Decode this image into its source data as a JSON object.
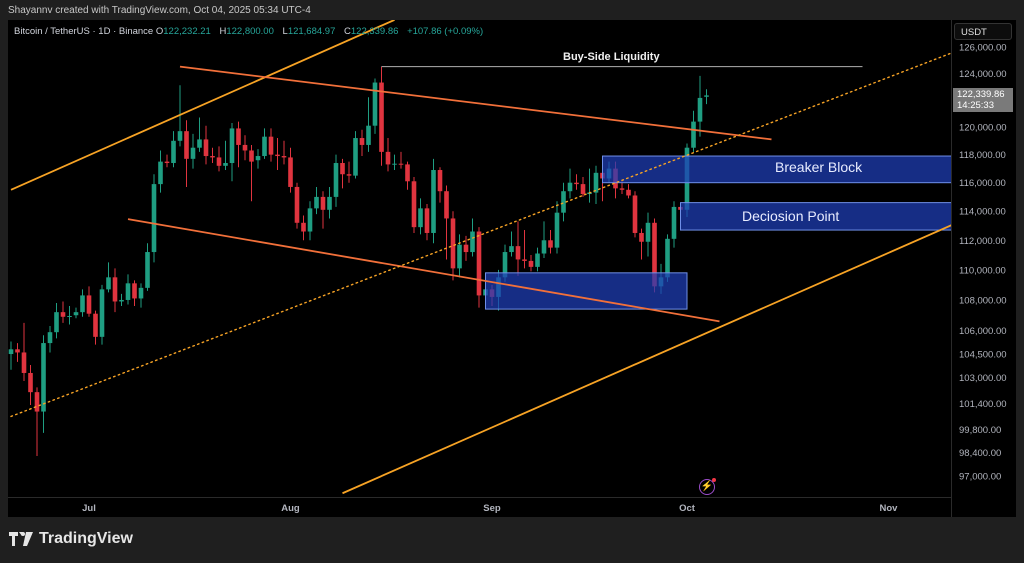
{
  "header": {
    "credit": "Shayannv created with TradingView.com, Oct 04, 2025 05:34 UTC-4"
  },
  "legend": {
    "symbol": "Bitcoin / TetherUS · 1D · Binance",
    "open_label": "O",
    "open": "122,232.21",
    "high_label": "H",
    "high": "122,800.00",
    "low_label": "L",
    "low": "121,684.97",
    "close_label": "C",
    "close": "122,339.86",
    "change": "+107.86 (+0.09%)"
  },
  "price_axis": {
    "currency": "USDT",
    "last_price": "122,339.86",
    "countdown": "14:25:33"
  },
  "footer": {
    "brand": "TradingView"
  },
  "colors": {
    "up": "#1f9e82",
    "down": "#e0343f",
    "channel": "#f7a325",
    "trendline": "#f2703a",
    "zone_fill": "#1f3fb8",
    "zone_border": "#6f8fe8",
    "liquidity_line": "#b0b0b0",
    "background": "#000000"
  },
  "icons": {
    "alert": "lightning-icon",
    "logo": "tradingview-logo-icon"
  },
  "chart_data": {
    "type": "candlestick",
    "interval": "1D",
    "y_scale": "log",
    "ylim": [
      96000,
      128000
    ],
    "xlim": [
      "2025-06-19",
      "2025-11-11"
    ],
    "grid": false,
    "y_ticks": [
      "126,000.00",
      "124,000.00",
      "120,000.00",
      "118,000.00",
      "116,000.00",
      "114,000.00",
      "112,000.00",
      "110,000.00",
      "108,000.00",
      "106,000.00",
      "104,500.00",
      "103,000.00",
      "101,400.00",
      "99,800.00",
      "98,400.00",
      "97,000.00"
    ],
    "x_ticks": [
      {
        "label": "Jul",
        "date": "2025-07-01"
      },
      {
        "label": "Aug",
        "date": "2025-08-01"
      },
      {
        "label": "Sep",
        "date": "2025-09-01"
      },
      {
        "label": "Oct",
        "date": "2025-10-01"
      },
      {
        "label": "Nov",
        "date": "2025-11-01"
      }
    ],
    "candles_columns": [
      "date",
      "open",
      "high",
      "low",
      "close"
    ],
    "candles": [
      [
        "2025-06-19",
        104500,
        105300,
        103500,
        104800
      ],
      [
        "2025-06-20",
        104800,
        105200,
        104000,
        104600
      ],
      [
        "2025-06-21",
        104600,
        106500,
        102800,
        103300
      ],
      [
        "2025-06-22",
        103300,
        103800,
        101300,
        102100
      ],
      [
        "2025-06-23",
        102100,
        102400,
        98200,
        100900
      ],
      [
        "2025-06-24",
        100900,
        105700,
        99600,
        105200
      ],
      [
        "2025-06-25",
        105200,
        106300,
        104600,
        105900
      ],
      [
        "2025-06-26",
        105900,
        107800,
        105500,
        107200
      ],
      [
        "2025-06-27",
        107200,
        107900,
        106500,
        106900
      ],
      [
        "2025-06-28",
        106900,
        107600,
        106400,
        106950
      ],
      [
        "2025-06-29",
        107000,
        107500,
        106800,
        107200
      ],
      [
        "2025-06-30",
        107200,
        108700,
        106900,
        108300
      ],
      [
        "2025-07-01",
        108300,
        108900,
        106900,
        107100
      ],
      [
        "2025-07-02",
        107100,
        107300,
        105100,
        105600
      ],
      [
        "2025-07-03",
        105600,
        109000,
        105100,
        108700
      ],
      [
        "2025-07-04",
        108700,
        110500,
        108500,
        109500
      ],
      [
        "2025-07-05",
        109500,
        110100,
        107200,
        107900
      ],
      [
        "2025-07-06",
        107900,
        108400,
        107600,
        108000
      ],
      [
        "2025-07-07",
        108000,
        109700,
        107700,
        109100
      ],
      [
        "2025-07-08",
        109100,
        109300,
        107600,
        108100
      ],
      [
        "2025-07-09",
        108100,
        109100,
        107500,
        108800
      ],
      [
        "2025-07-10",
        108800,
        111800,
        108600,
        111200
      ],
      [
        "2025-07-11",
        111200,
        116600,
        110500,
        115900
      ],
      [
        "2025-07-12",
        115900,
        118300,
        115300,
        117500
      ],
      [
        "2025-07-13",
        117500,
        118000,
        117100,
        117400
      ],
      [
        "2025-07-14",
        117400,
        119700,
        117100,
        119000
      ],
      [
        "2025-07-15",
        119000,
        123100,
        118600,
        119700
      ],
      [
        "2025-07-16",
        119700,
        120500,
        115700,
        117700
      ],
      [
        "2025-07-17",
        117700,
        119500,
        117000,
        118500
      ],
      [
        "2025-07-18",
        118500,
        120700,
        118200,
        119100
      ],
      [
        "2025-07-19",
        119100,
        120100,
        117300,
        117900
      ],
      [
        "2025-07-20",
        117900,
        118500,
        117400,
        117800
      ],
      [
        "2025-07-21",
        117800,
        118600,
        116800,
        117200
      ],
      [
        "2025-07-22",
        117200,
        119000,
        116900,
        117400
      ],
      [
        "2025-07-23",
        117400,
        120300,
        116100,
        119900
      ],
      [
        "2025-07-24",
        119900,
        120400,
        117100,
        118700
      ],
      [
        "2025-07-25",
        118700,
        119400,
        117600,
        118300
      ],
      [
        "2025-07-26",
        118300,
        118700,
        114700,
        117500
      ],
      [
        "2025-07-27",
        117600,
        118400,
        117000,
        117900
      ],
      [
        "2025-07-28",
        117900,
        119900,
        117700,
        119300
      ],
      [
        "2025-07-29",
        119300,
        119900,
        117500,
        118000
      ],
      [
        "2025-07-30",
        118000,
        119200,
        116900,
        117900
      ],
      [
        "2025-07-31",
        117900,
        119000,
        117300,
        117800
      ],
      [
        "2025-08-01",
        117800,
        118500,
        115300,
        115700
      ],
      [
        "2025-08-02",
        115700,
        116000,
        112800,
        113200
      ],
      [
        "2025-08-03",
        113200,
        113700,
        112000,
        112600
      ],
      [
        "2025-08-04",
        112600,
        114700,
        112000,
        114200
      ],
      [
        "2025-08-05",
        114200,
        115700,
        113800,
        115000
      ],
      [
        "2025-08-06",
        115000,
        115400,
        112800,
        114100
      ],
      [
        "2025-08-07",
        114100,
        115700,
        113500,
        115000
      ],
      [
        "2025-08-08",
        115000,
        118000,
        114300,
        117400
      ],
      [
        "2025-08-09",
        117400,
        117700,
        115600,
        116600
      ],
      [
        "2025-08-10",
        116600,
        117500,
        116000,
        116500
      ],
      [
        "2025-08-11",
        116500,
        119700,
        116300,
        119200
      ],
      [
        "2025-08-12",
        119200,
        119800,
        117900,
        118700
      ],
      [
        "2025-08-13",
        118700,
        122200,
        118200,
        120100
      ],
      [
        "2025-08-14",
        120100,
        123600,
        119500,
        123300
      ],
      [
        "2025-08-15",
        123300,
        124500,
        117200,
        118200
      ],
      [
        "2025-08-16",
        118200,
        119200,
        116800,
        117300
      ],
      [
        "2025-08-17",
        117300,
        118000,
        116900,
        117350
      ],
      [
        "2025-08-18",
        117350,
        118200,
        117000,
        117300
      ],
      [
        "2025-08-19",
        117300,
        117500,
        115500,
        116100
      ],
      [
        "2025-08-20",
        116100,
        116400,
        112500,
        112900
      ],
      [
        "2025-08-21",
        112900,
        114900,
        112400,
        114200
      ],
      [
        "2025-08-22",
        114200,
        114500,
        112000,
        112500
      ],
      [
        "2025-08-23",
        112500,
        117700,
        111800,
        116900
      ],
      [
        "2025-08-24",
        116900,
        117100,
        114600,
        115400
      ],
      [
        "2025-08-25",
        115400,
        115800,
        110700,
        113500
      ],
      [
        "2025-08-26",
        113500,
        114000,
        109300,
        110100
      ],
      [
        "2025-08-27",
        110100,
        112400,
        109500,
        111700
      ],
      [
        "2025-08-28",
        111700,
        112300,
        110600,
        111200
      ],
      [
        "2025-08-29",
        111200,
        113500,
        110900,
        112600
      ],
      [
        "2025-08-30",
        112600,
        112900,
        107500,
        108300
      ],
      [
        "2025-08-31",
        108300,
        109300,
        107600,
        108700
      ],
      [
        "2025-09-01",
        108700,
        109000,
        107600,
        108200
      ],
      [
        "2025-09-02",
        108200,
        110000,
        107300,
        109500
      ],
      [
        "2025-09-03",
        109500,
        111700,
        109200,
        111200
      ],
      [
        "2025-09-04",
        111200,
        112600,
        110900,
        111600
      ],
      [
        "2025-09-05",
        111600,
        113300,
        109600,
        110700
      ],
      [
        "2025-09-06",
        110700,
        112700,
        110100,
        110600
      ],
      [
        "2025-09-07",
        110600,
        111000,
        109900,
        110200
      ],
      [
        "2025-09-08",
        110200,
        111500,
        109900,
        111100
      ],
      [
        "2025-09-09",
        111100,
        113300,
        110800,
        112000
      ],
      [
        "2025-09-10",
        112000,
        112700,
        111100,
        111500
      ],
      [
        "2025-09-11",
        111500,
        114700,
        111100,
        113900
      ],
      [
        "2025-09-12",
        113900,
        116000,
        113300,
        115400
      ],
      [
        "2025-09-13",
        115400,
        117000,
        114900,
        116000
      ],
      [
        "2025-09-14",
        116000,
        116600,
        115500,
        115900
      ],
      [
        "2025-09-15",
        115900,
        116400,
        115000,
        115200
      ],
      [
        "2025-09-16",
        115200,
        117000,
        114600,
        115300
      ],
      [
        "2025-09-17",
        115300,
        117200,
        114500,
        116700
      ],
      [
        "2025-09-18",
        116700,
        117000,
        114700,
        116300
      ],
      [
        "2025-09-19",
        116300,
        117500,
        116000,
        117000
      ],
      [
        "2025-09-20",
        117000,
        117500,
        114900,
        115600
      ],
      [
        "2025-09-21",
        115600,
        116200,
        115200,
        115500
      ],
      [
        "2025-09-22",
        115500,
        115900,
        114900,
        115100
      ],
      [
        "2025-09-23",
        115100,
        115400,
        112200,
        112500
      ],
      [
        "2025-09-24",
        112500,
        112800,
        110700,
        111900
      ],
      [
        "2025-09-25",
        111900,
        113900,
        110900,
        113200
      ],
      [
        "2025-09-26",
        113200,
        113500,
        108500,
        108900
      ],
      [
        "2025-09-27",
        108900,
        110400,
        108400,
        109500
      ],
      [
        "2025-09-28",
        109500,
        112400,
        109200,
        112100
      ],
      [
        "2025-09-29",
        112100,
        114700,
        111500,
        114300
      ],
      [
        "2025-09-30",
        114300,
        114500,
        113900,
        114100
      ],
      [
        "2025-10-01",
        114100,
        118800,
        113600,
        118500
      ],
      [
        "2025-10-02",
        118500,
        121200,
        118200,
        120400
      ],
      [
        "2025-10-03",
        120400,
        123800,
        119300,
        122150
      ],
      [
        "2025-10-04",
        122232.21,
        122800,
        121684.97,
        122339.86
      ]
    ],
    "drawings": {
      "lines": [
        {
          "kind": "channel-upper",
          "style": "solid",
          "color": "#f7a325",
          "from": [
            "2025-06-19",
            115500
          ],
          "to": [
            "2025-08-17",
            128100
          ]
        },
        {
          "kind": "channel-lower",
          "style": "solid",
          "color": "#f7a325",
          "from": [
            "2025-08-09",
            96000
          ],
          "to": [
            "2025-11-11",
            113100
          ]
        },
        {
          "kind": "trend-upper",
          "style": "solid",
          "color": "#f2703a",
          "from": [
            "2025-07-15",
            124500
          ],
          "to": [
            "2025-10-14",
            119100
          ]
        },
        {
          "kind": "trend-lower",
          "style": "solid",
          "color": "#f2703a",
          "from": [
            "2025-07-07",
            113450
          ],
          "to": [
            "2025-10-06",
            106600
          ]
        },
        {
          "kind": "channel-mid",
          "style": "dotted",
          "color": "#f7a325",
          "from": [
            "2025-06-19",
            100600
          ],
          "to": [
            "2025-11-11",
            125600
          ]
        }
      ],
      "liquidity": {
        "label": "Buy-Side Liquidity",
        "price": 124500,
        "from": "2025-08-15",
        "to": "2025-10-28"
      },
      "zones": [
        {
          "label": "Breaker Block",
          "from": "2025-09-18",
          "to": "2025-11-11",
          "top": 117900,
          "bottom": 116000
        },
        {
          "label": "Deciosion Point",
          "from": "2025-09-30",
          "to": "2025-11-11",
          "top": 114600,
          "bottom": 112700
        },
        {
          "label": "",
          "from": "2025-08-31",
          "to": "2025-10-01",
          "top": 109800,
          "bottom": 107400
        }
      ]
    }
  }
}
